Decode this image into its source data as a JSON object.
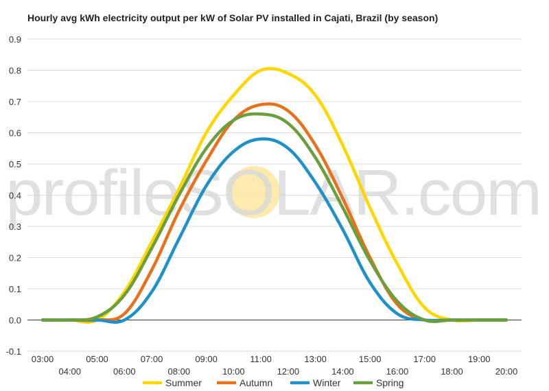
{
  "title": "Hourly avg kWh electricity output per kW of Solar PV installed in Cajati, Brazil (by season)",
  "watermark": {
    "text": "profileSOLAR.com",
    "color": "#d9d9d9",
    "sun_color": "#fde8a0"
  },
  "chart_data": {
    "type": "line",
    "title": "Hourly avg kWh electricity output per kW of Solar PV installed in Cajati, Brazil (by season)",
    "xlabel": "",
    "ylabel": "",
    "x_ticks": [
      "03:00",
      "04:00",
      "05:00",
      "06:00",
      "07:00",
      "08:00",
      "09:00",
      "10:00",
      "11:00",
      "12:00",
      "13:00",
      "14:00",
      "15:00",
      "16:00",
      "17:00",
      "18:00",
      "19:00",
      "20:00"
    ],
    "y_ticks": [
      "-0.1",
      "0.0",
      "0.1",
      "0.2",
      "0.3",
      "0.4",
      "0.5",
      "0.6",
      "0.7",
      "0.8",
      "0.9"
    ],
    "ylim": [
      -0.1,
      0.9
    ],
    "x_hours": [
      3,
      4,
      5,
      6,
      7,
      8,
      9,
      10,
      11,
      12,
      13,
      14,
      15,
      16,
      17,
      18,
      19,
      20
    ],
    "grid": true,
    "legend_position": "bottom",
    "series": [
      {
        "name": "Summer",
        "color": "#ffd700",
        "values": [
          0.0,
          0.0,
          0.0,
          0.09,
          0.25,
          0.42,
          0.6,
          0.72,
          0.8,
          0.79,
          0.72,
          0.56,
          0.36,
          0.18,
          0.04,
          0.0,
          0.0,
          0.0
        ]
      },
      {
        "name": "Autumn",
        "color": "#e8711c",
        "values": [
          0.0,
          0.0,
          0.0,
          0.02,
          0.16,
          0.35,
          0.51,
          0.64,
          0.69,
          0.67,
          0.56,
          0.39,
          0.2,
          0.05,
          0.0,
          0.0,
          0.0,
          0.0
        ]
      },
      {
        "name": "Winter",
        "color": "#2090c8",
        "values": [
          0.0,
          0.0,
          0.0,
          0.0,
          0.09,
          0.26,
          0.43,
          0.54,
          0.58,
          0.55,
          0.44,
          0.29,
          0.12,
          0.02,
          0.0,
          0.0,
          0.0,
          0.0
        ]
      },
      {
        "name": "Spring",
        "color": "#6b9e3d",
        "values": [
          0.0,
          0.0,
          0.01,
          0.08,
          0.23,
          0.4,
          0.55,
          0.64,
          0.66,
          0.63,
          0.52,
          0.36,
          0.19,
          0.06,
          0.0,
          0.0,
          0.0,
          0.0
        ]
      }
    ]
  }
}
